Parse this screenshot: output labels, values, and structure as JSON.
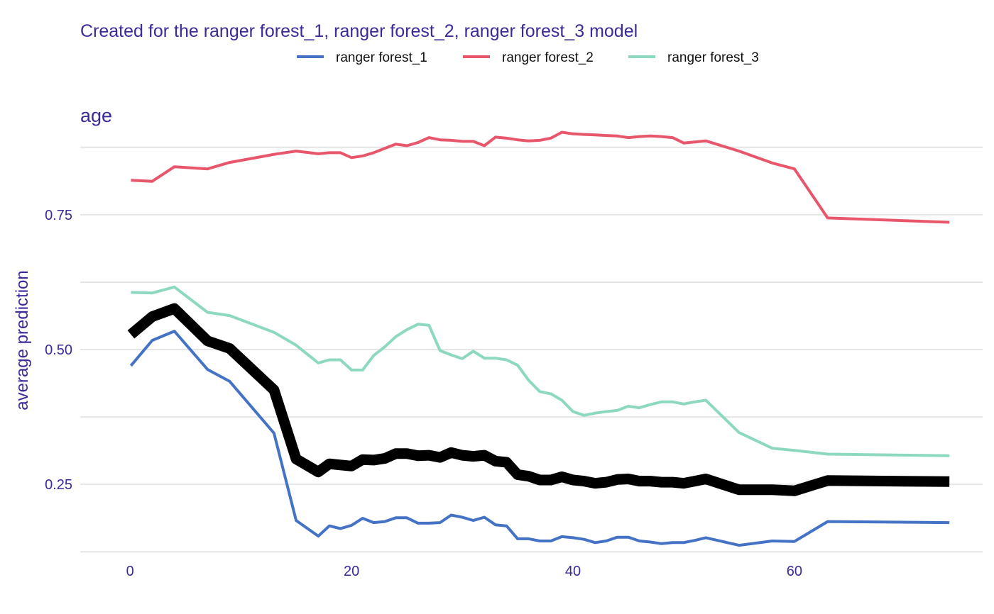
{
  "chart_data": {
    "type": "line",
    "subtitle": "Created for the ranger forest_1, ranger forest_2, ranger forest_3 model",
    "panel_title": "age",
    "xlabel": "",
    "ylabel": "average prediction",
    "xlim": [
      -4.5,
      77
    ],
    "ylim": [
      0.12,
      0.905
    ],
    "x_ticks": [
      0,
      20,
      40,
      60
    ],
    "y_ticks": [
      0.25,
      0.5,
      0.75
    ],
    "y_minor_gridlines": [
      0.125,
      0.375,
      0.625,
      0.875
    ],
    "grid": true,
    "legend_position": "top",
    "x": [
      0.08,
      2,
      4,
      7,
      9,
      13,
      15,
      17,
      18,
      19,
      20,
      21,
      22,
      23,
      24,
      25,
      26,
      27,
      28,
      29,
      30,
      31,
      32,
      33,
      34,
      35,
      36,
      37,
      38,
      39,
      40,
      41,
      42,
      43,
      44,
      45,
      46,
      47,
      48,
      49,
      50,
      51,
      52,
      55,
      58,
      60,
      63,
      74
    ],
    "series": [
      {
        "name": "ranger forest_1",
        "color": "#4472c4",
        "values": [
          0.47,
          0.517,
          0.534,
          0.463,
          0.441,
          0.345,
          0.183,
          0.154,
          0.173,
          0.168,
          0.174,
          0.187,
          0.179,
          0.181,
          0.188,
          0.188,
          0.178,
          0.178,
          0.179,
          0.193,
          0.189,
          0.183,
          0.189,
          0.175,
          0.173,
          0.149,
          0.149,
          0.145,
          0.145,
          0.153,
          0.151,
          0.148,
          0.142,
          0.145,
          0.152,
          0.152,
          0.145,
          0.143,
          0.14,
          0.142,
          0.142,
          0.146,
          0.151,
          0.137,
          0.145,
          0.144,
          0.181,
          0.179
        ]
      },
      {
        "name": "ranger forest_2",
        "color": "#e8566c",
        "values": [
          0.814,
          0.812,
          0.839,
          0.835,
          0.847,
          0.862,
          0.868,
          0.863,
          0.865,
          0.865,
          0.856,
          0.859,
          0.865,
          0.873,
          0.881,
          0.878,
          0.884,
          0.893,
          0.889,
          0.888,
          0.886,
          0.886,
          0.878,
          0.894,
          0.892,
          0.889,
          0.887,
          0.888,
          0.892,
          0.903,
          0.9,
          0.899,
          0.898,
          0.897,
          0.896,
          0.893,
          0.895,
          0.896,
          0.895,
          0.893,
          0.883,
          0.885,
          0.887,
          0.868,
          0.846,
          0.835,
          0.744,
          0.736
        ]
      },
      {
        "name": "ranger forest_3",
        "color": "#8dd8c0",
        "values": [
          0.606,
          0.605,
          0.616,
          0.569,
          0.563,
          0.532,
          0.508,
          0.475,
          0.481,
          0.481,
          0.462,
          0.462,
          0.489,
          0.505,
          0.524,
          0.537,
          0.547,
          0.545,
          0.498,
          0.49,
          0.483,
          0.497,
          0.484,
          0.484,
          0.481,
          0.471,
          0.443,
          0.422,
          0.418,
          0.406,
          0.385,
          0.378,
          0.382,
          0.385,
          0.387,
          0.395,
          0.392,
          0.398,
          0.403,
          0.403,
          0.399,
          0.403,
          0.406,
          0.346,
          0.317,
          0.313,
          0.306,
          0.303
        ]
      },
      {
        "name": "",
        "color": "#000000",
        "values": [
          0.528,
          0.561,
          0.576,
          0.516,
          0.502,
          0.425,
          0.297,
          0.273,
          0.288,
          0.286,
          0.284,
          0.296,
          0.295,
          0.298,
          0.307,
          0.307,
          0.303,
          0.304,
          0.3,
          0.309,
          0.304,
          0.302,
          0.304,
          0.293,
          0.291,
          0.268,
          0.265,
          0.258,
          0.258,
          0.264,
          0.258,
          0.256,
          0.252,
          0.254,
          0.259,
          0.26,
          0.256,
          0.256,
          0.254,
          0.254,
          0.252,
          0.256,
          0.26,
          0.24,
          0.24,
          0.238,
          0.257,
          0.255
        ]
      }
    ]
  }
}
